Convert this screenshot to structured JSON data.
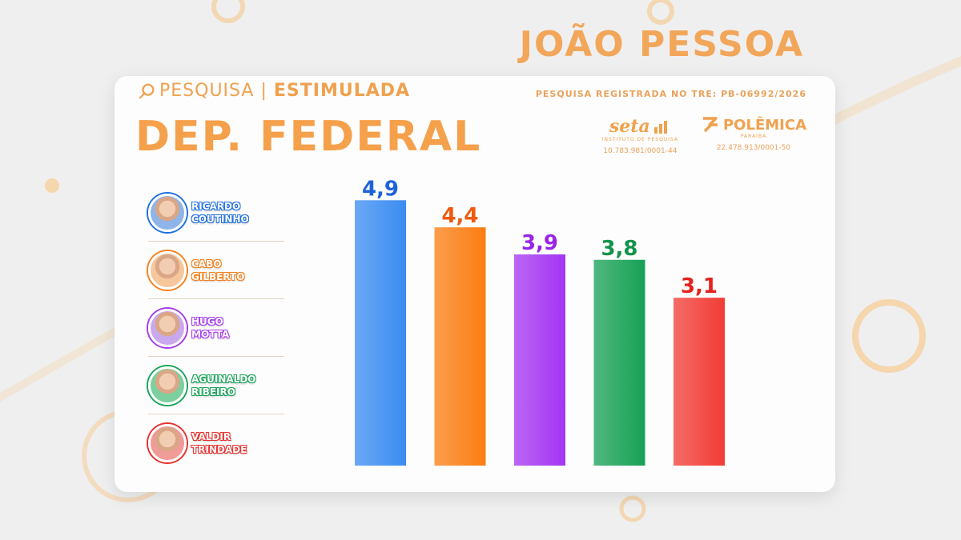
{
  "header": {
    "city": "JOÃO PESSOA",
    "tag_normal": "PESQUISA",
    "tag_separator": "|",
    "tag_strong": "ESTIMULADA",
    "title": "DEP. FEDERAL",
    "registration": "PESQUISA REGISTRADA NO TRE: PB-06992/2026"
  },
  "logos": [
    {
      "name": "seta",
      "subtitle": "INSTITUTO DE PESQUISA",
      "cnpj": "10.783.981/0001-44"
    },
    {
      "name": "POLÊMICA",
      "subtitle": "PARAÍBA",
      "cnpj": "22.478.913/0001-50"
    }
  ],
  "candidates": [
    {
      "first": "RICARDO",
      "last": "COUTINHO",
      "color": "#1f6fe0",
      "avatar_bg": "#8fb4e8"
    },
    {
      "first": "CABO",
      "last": "GILBERTO",
      "color": "#f5811f",
      "avatar_bg": "#f6c79d"
    },
    {
      "first": "HUGO",
      "last": "MOTTA",
      "color": "#a53cf0",
      "avatar_bg": "#c9a8ee"
    },
    {
      "first": "AGUINALDO",
      "last": "RIBEIRO",
      "color": "#1aa35a",
      "avatar_bg": "#7ccf9e"
    },
    {
      "first": "VALDIR",
      "last": "TRINDADE",
      "color": "#e8302c",
      "avatar_bg": "#f09b97"
    }
  ],
  "chart_data": {
    "type": "bar",
    "categories": [
      "RICARDO COUTINHO",
      "CABO GILBERTO",
      "HUGO MOTTA",
      "AGUINALDO RIBEIRO",
      "VALDIR TRINDADE"
    ],
    "values": [
      4.9,
      4.4,
      3.9,
      3.8,
      3.1
    ],
    "value_labels": [
      "4,9",
      "4,4",
      "3,9",
      "3,8",
      "3,1"
    ],
    "colors": [
      "#3a8cf2",
      "#fb7d12",
      "#a434f3",
      "#16a155",
      "#f23b35"
    ],
    "label_colors": [
      "#1f63d6",
      "#ee5a0e",
      "#9a24e6",
      "#12924a",
      "#e3211d"
    ],
    "ylim": [
      0,
      5.2
    ],
    "grid": false,
    "title": "",
    "xlabel": "",
    "ylabel": ""
  }
}
